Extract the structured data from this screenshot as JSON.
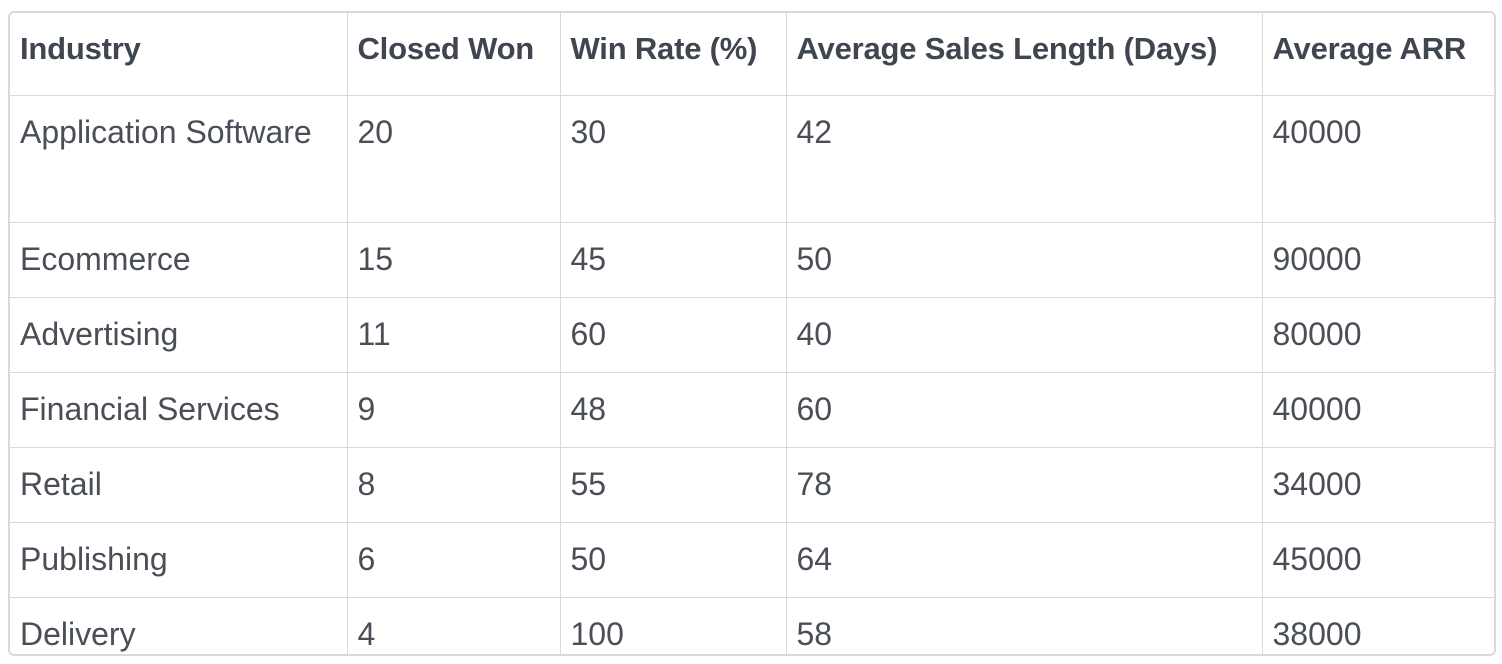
{
  "table": {
    "headers": [
      "Industry",
      "Closed Won",
      "Win Rate (%)",
      "Average Sales Length (Days)",
      "Average ARR"
    ],
    "rows": [
      [
        "Application Software",
        "20",
        "30",
        "42",
        "40000"
      ],
      [
        "Ecommerce",
        "15",
        "45",
        "50",
        "90000"
      ],
      [
        "Advertising",
        "11",
        "60",
        "40",
        "80000"
      ],
      [
        "Financial Services",
        "9",
        "48",
        "60",
        "40000"
      ],
      [
        "Retail",
        "8",
        "55",
        "78",
        "34000"
      ],
      [
        "Publishing",
        "6",
        "50",
        "64",
        "45000"
      ],
      [
        "Delivery",
        "4",
        "100",
        "58",
        "38000"
      ]
    ]
  }
}
